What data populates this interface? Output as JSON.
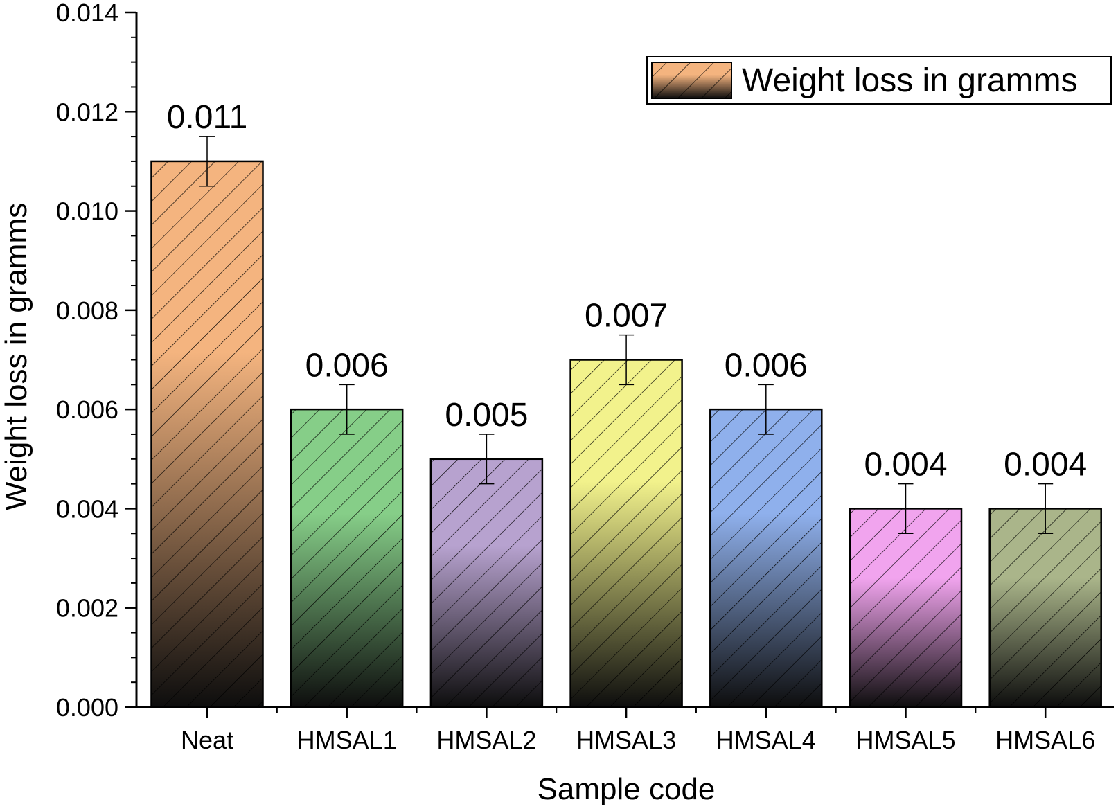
{
  "chart_data": {
    "type": "bar",
    "xlabel": "Sample code",
    "ylabel": "Weight loss in gramms",
    "categories": [
      "Neat",
      "HMSAL1",
      "HMSAL2",
      "HMSAL3",
      "HMSAL4",
      "HMSAL5",
      "HMSAL6"
    ],
    "series": [
      {
        "name": "Weight loss in gramms",
        "values": [
          0.011,
          0.006,
          0.005,
          0.007,
          0.006,
          0.004,
          0.004
        ],
        "error": [
          0.0005,
          0.0005,
          0.0005,
          0.0005,
          0.0005,
          0.0005,
          0.0005
        ]
      }
    ],
    "data_labels": [
      "0.011",
      "0.006",
      "0.005",
      "0.007",
      "0.006",
      "0.004",
      "0.004"
    ],
    "ylim": [
      0,
      0.014
    ],
    "yticks": [
      0,
      0.002,
      0.004,
      0.006,
      0.008,
      0.01,
      0.012,
      0.014
    ],
    "ytick_labels": [
      "0.000",
      "0.002",
      "0.004",
      "0.006",
      "0.008",
      "0.010",
      "0.012",
      "0.014"
    ],
    "bar_colors": [
      "#f4b47f",
      "#86ce88",
      "#b7a2cf",
      "#f2f28c",
      "#8fb0ec",
      "#f1a4ee",
      "#aab58a"
    ],
    "pattern": "diagonal-hatch",
    "grid": false,
    "legend_position": "top-right"
  }
}
